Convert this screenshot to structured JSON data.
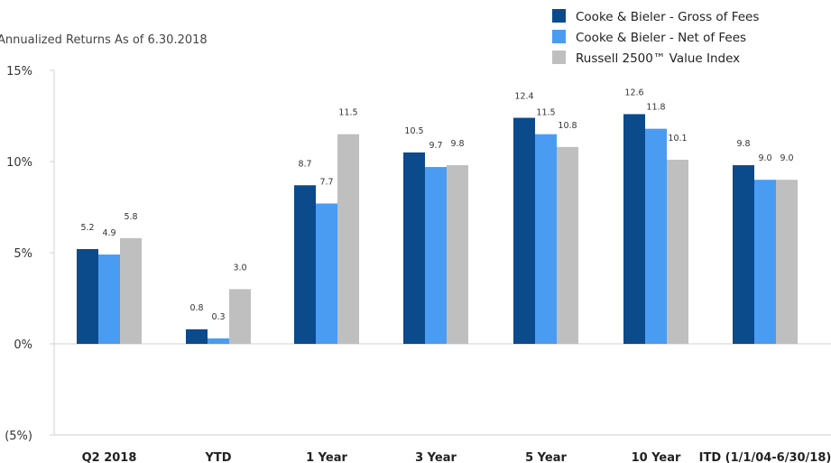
{
  "chart_data": {
    "type": "bar",
    "subtitle": "Annualized Returns As of 6.30.2018",
    "categories": [
      "Q2 2018",
      "YTD",
      "1 Year",
      "3 Year",
      "5 Year",
      "10 Year",
      "ITD (1/1/04-6/30/18)"
    ],
    "series": [
      {
        "name": "Cooke & Bieler - Gross of Fees",
        "color": "#0b4a8b",
        "values": [
          5.2,
          0.8,
          8.7,
          10.5,
          12.4,
          12.6,
          9.8
        ]
      },
      {
        "name": "Cooke & Bieler - Net of Fees",
        "color": "#4a9cf2",
        "values": [
          4.9,
          0.3,
          7.7,
          9.7,
          11.5,
          11.8,
          9.0
        ]
      },
      {
        "name": "Russell 2500™ Value Index",
        "color": "#bfbfbf",
        "values": [
          5.8,
          3.0,
          11.5,
          9.8,
          10.8,
          10.1,
          9.0
        ]
      }
    ],
    "data_labels": [
      [
        "5.2",
        "0.8",
        "8.7",
        "10.5",
        "12.4",
        "12.6",
        "9.8"
      ],
      [
        "4.9",
        "0.3",
        "7.7",
        "9.7",
        "11.5",
        "11.8",
        "9.0"
      ],
      [
        "5.8",
        "3.0",
        "11.5",
        "9.8",
        "10.8",
        "10.1",
        "9.0"
      ]
    ],
    "ylim": [
      -5,
      15
    ],
    "yticks": [
      15,
      10,
      5,
      0,
      -5
    ],
    "ytick_labels": [
      "15%",
      "10%",
      "5%",
      "0%",
      "(5%)"
    ],
    "legend_position": "top-right",
    "grid": false
  }
}
